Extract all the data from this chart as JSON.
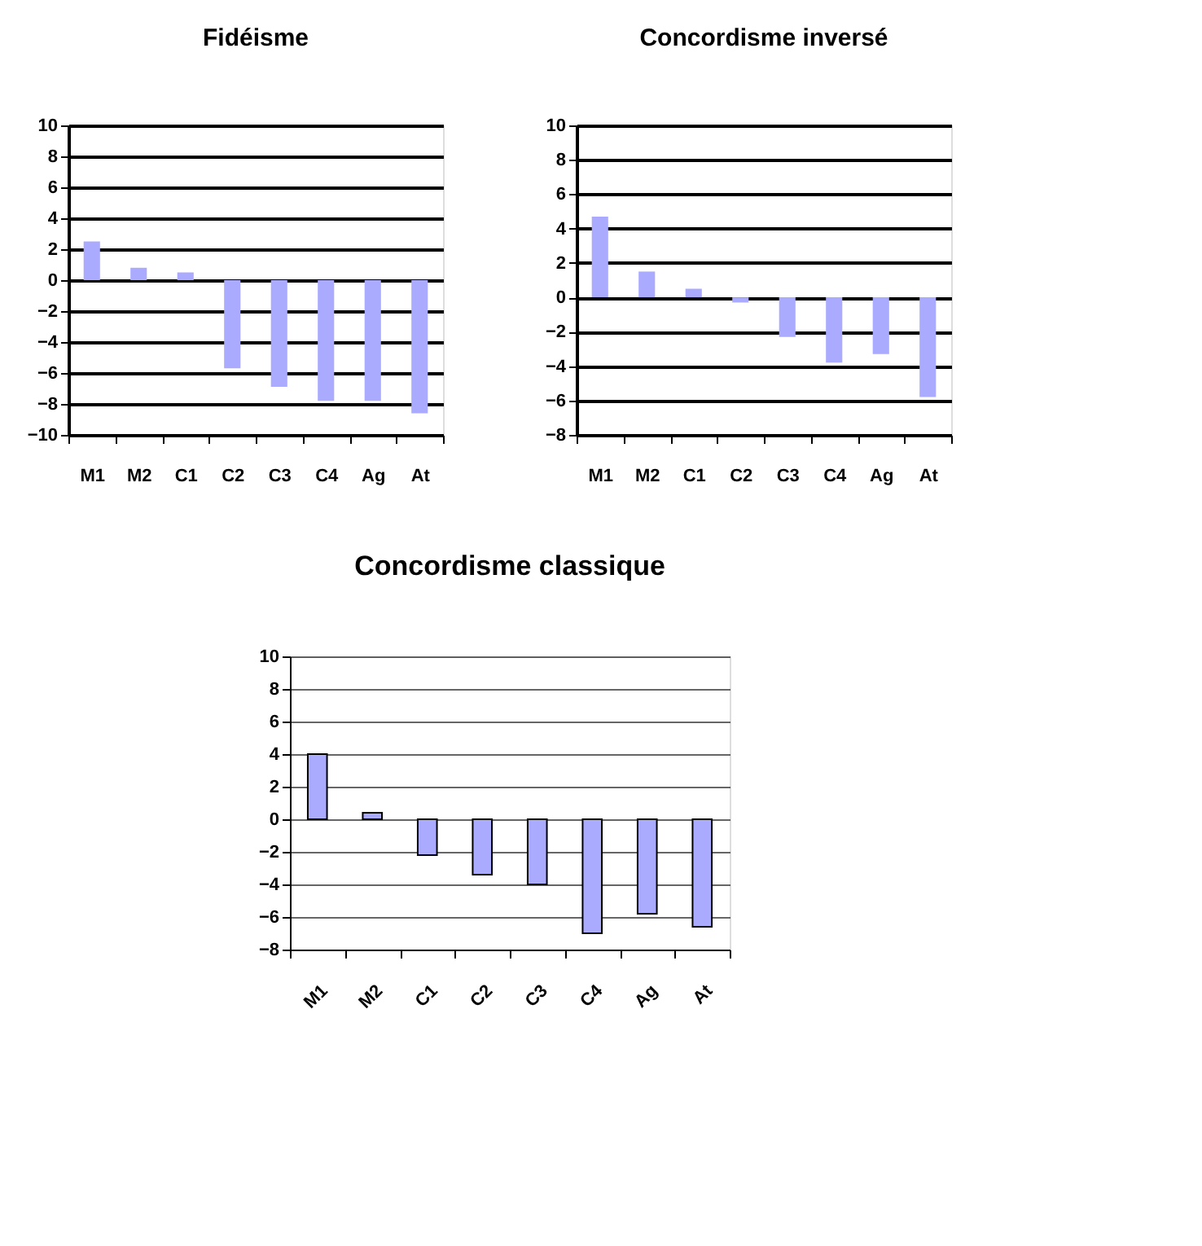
{
  "chart_data": [
    {
      "type": "bar",
      "title": "Fidéisme",
      "categories": [
        "M1",
        "M2",
        "C1",
        "C2",
        "C3",
        "C4",
        "Ag",
        "At"
      ],
      "values": [
        2.5,
        0.8,
        0.5,
        -5.7,
        -6.9,
        -7.8,
        -7.8,
        -8.6
      ],
      "color": "#aaaaff",
      "ylim": [
        -10,
        10
      ],
      "yticks": [
        -10,
        -8,
        -6,
        -4,
        -2,
        0,
        2,
        4,
        6,
        8,
        10
      ],
      "grid": "y"
    },
    {
      "type": "bar",
      "title": "Concordisme inversé",
      "categories": [
        "M1",
        "M2",
        "C1",
        "C2",
        "C3",
        "C4",
        "Ag",
        "At"
      ],
      "values": [
        4.7,
        1.5,
        0.5,
        -0.3,
        -2.3,
        -3.8,
        -3.3,
        -5.8
      ],
      "color": "#aaaaff",
      "ylim": [
        -8,
        10
      ],
      "yticks": [
        -8,
        -6,
        -4,
        -2,
        0,
        2,
        4,
        6,
        8,
        10
      ],
      "grid": "y"
    },
    {
      "type": "bar",
      "title": "Concordisme classique",
      "categories": [
        "M1",
        "M2",
        "C1",
        "C2",
        "C3",
        "C4",
        "Ag",
        "At"
      ],
      "values": [
        4,
        0.4,
        -2.2,
        -3.4,
        -4,
        -7,
        -5.8,
        -6.6
      ],
      "color": "#aaaaff",
      "ylim": [
        -8,
        10
      ],
      "yticks": [
        -8,
        -6,
        -4,
        -2,
        0,
        2,
        4,
        6,
        8,
        10
      ],
      "grid": "y"
    }
  ]
}
